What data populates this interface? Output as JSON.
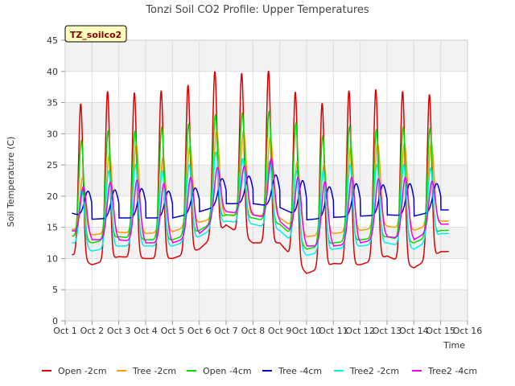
{
  "chart_data": {
    "type": "line",
    "title": "Tonzi Soil CO2 Profile: Upper Temperatures",
    "badge": "TZ_soilco2",
    "xlabel": "Time",
    "ylabel": "Soil Temperature (C)",
    "xlim": [
      1,
      16
    ],
    "ylim": [
      0,
      45
    ],
    "xticks": [
      1,
      2,
      3,
      4,
      5,
      6,
      7,
      8,
      9,
      10,
      11,
      12,
      13,
      14,
      15,
      16
    ],
    "xtick_labels": [
      "Oct 1",
      "Oct 2",
      "Oct 3",
      "Oct 4",
      "Oct 5",
      "Oct 6",
      "Oct 7",
      "Oct 8",
      "Oct 9",
      "Oct 10",
      "Oct 11",
      "Oct 12",
      "Oct 13",
      "Oct 14",
      "Oct 15",
      "Oct 16"
    ],
    "yticks": [
      0,
      5,
      10,
      15,
      20,
      25,
      30,
      35,
      40,
      45
    ],
    "grid": true,
    "legend_position": "bottom",
    "series": [
      {
        "name": "Open -2cm",
        "color": "#dd0000",
        "phase": 0.58,
        "width": 0.26,
        "peaks": [
          34.8,
          36.8,
          36.6,
          36.9,
          37.8,
          40.0,
          39.7,
          40.1,
          36.7,
          34.9,
          36.9,
          37.1,
          36.8,
          36.3
        ],
        "mins": [
          11.2,
          9.0,
          10.3,
          10.0,
          10.0,
          11.5,
          15.4,
          12.5,
          12.5,
          7.6,
          9.2,
          9.0,
          10.4,
          8.5,
          11.1
        ]
      },
      {
        "name": "Tree -2cm",
        "color": "#ff9900",
        "phase": 0.65,
        "width": 0.32,
        "peaks": [
          23.0,
          26.8,
          28.3,
          26.3,
          28.0,
          30.5,
          30.5,
          29.5,
          25.5,
          25.0,
          28.0,
          28.4,
          28.5,
          28.5
        ],
        "mins": [
          15.0,
          13.8,
          14.2,
          14.0,
          14.3,
          15.8,
          17.0,
          17.0,
          16.5,
          13.5,
          14.0,
          14.5,
          15.2,
          14.5,
          16.0
        ]
      },
      {
        "name": "Open -4cm",
        "color": "#00dd00",
        "phase": 0.6,
        "width": 0.28,
        "peaks": [
          28.9,
          30.4,
          30.4,
          31.0,
          31.5,
          33.0,
          33.3,
          33.5,
          31.7,
          29.6,
          31.1,
          30.6,
          31.0,
          30.8
        ],
        "mins": [
          14.0,
          12.5,
          13.5,
          13.0,
          13.0,
          14.5,
          17.0,
          16.5,
          15.5,
          11.5,
          12.5,
          13.0,
          13.5,
          12.5,
          14.5
        ]
      },
      {
        "name": "Tree -4cm",
        "color": "#0000cc",
        "phase": 0.85,
        "width": 0.42,
        "peaks": [
          20.8,
          21.0,
          21.2,
          20.8,
          21.3,
          22.8,
          23.2,
          23.4,
          22.5,
          21.5,
          22.0,
          21.8,
          22.0,
          22.0
        ],
        "mins": [
          17.6,
          16.3,
          16.5,
          16.5,
          16.5,
          17.5,
          18.8,
          18.8,
          18.2,
          16.2,
          16.6,
          16.8,
          17.0,
          16.8,
          17.8
        ]
      },
      {
        "name": "Tree2 -2cm",
        "color": "#00eeee",
        "phase": 0.62,
        "width": 0.3,
        "peaks": [
          21.0,
          24.0,
          25.0,
          24.0,
          25.0,
          27.0,
          26.0,
          25.5,
          24.0,
          24.0,
          25.0,
          25.0,
          25.0,
          24.5
        ],
        "mins": [
          13.0,
          11.2,
          12.0,
          12.0,
          12.0,
          13.5,
          16.0,
          15.5,
          14.5,
          10.5,
          11.5,
          12.0,
          12.5,
          11.5,
          14.0
        ]
      },
      {
        "name": "Tree2 -4cm",
        "color": "#ee00ee",
        "phase": 0.68,
        "width": 0.36,
        "peaks": [
          21.5,
          22.2,
          22.6,
          22.0,
          23.0,
          24.6,
          24.8,
          26.0,
          23.0,
          22.3,
          23.0,
          22.8,
          23.0,
          22.4
        ],
        "mins": [
          15.0,
          13.0,
          13.0,
          12.5,
          12.5,
          14.0,
          17.5,
          17.0,
          16.0,
          12.0,
          12.0,
          12.5,
          13.5,
          13.0,
          15.5
        ]
      }
    ]
  }
}
